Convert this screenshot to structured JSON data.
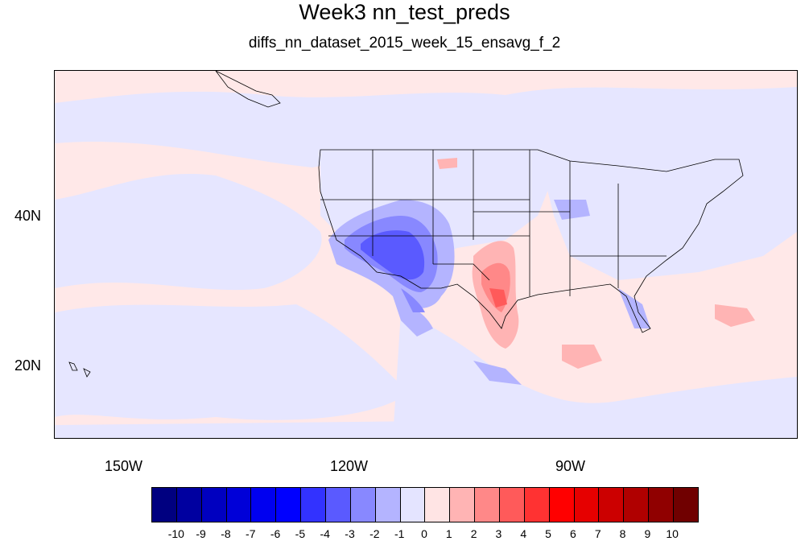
{
  "title": "Week3 nn_test_preds",
  "subtitle": "diffs_nn_dataset_2015_week_15_ensavg_f_2",
  "lat_labels": [
    "40N",
    "20N"
  ],
  "lon_labels": [
    "150W",
    "120W",
    "90W"
  ],
  "colorbar": {
    "labels": [
      "-10",
      "-9",
      "-8",
      "-7",
      "-6",
      "-5",
      "-4",
      "-3",
      "-2",
      "-1",
      "0",
      "1",
      "2",
      "3",
      "4",
      "5",
      "6",
      "7",
      "8",
      "9",
      "10"
    ],
    "colors": [
      "#000080",
      "#0000a0",
      "#0000c0",
      "#0000d8",
      "#0000f0",
      "#0000ff",
      "#3232ff",
      "#5a5aff",
      "#8888ff",
      "#b4b4ff",
      "#e4e4ff",
      "#ffe4e4",
      "#ffb4b4",
      "#ff8888",
      "#ff5a5a",
      "#ff3232",
      "#ff0000",
      "#e60000",
      "#cc0000",
      "#b00000",
      "#900000",
      "#700000"
    ]
  },
  "colors": {
    "background_positive": "#ffe8e8",
    "background_negative": "#e6e6ff",
    "boundary": "#000000"
  }
}
